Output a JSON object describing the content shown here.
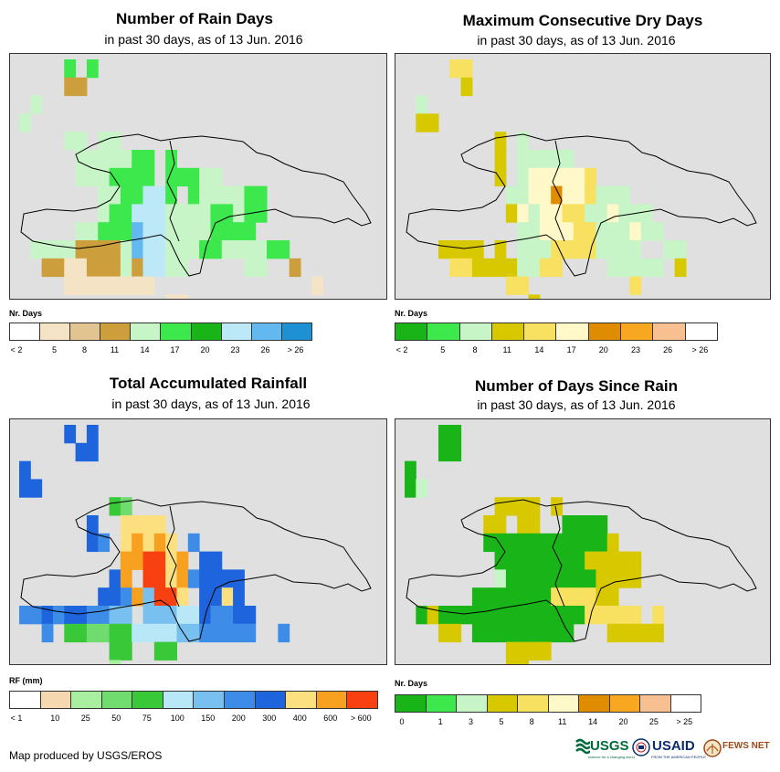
{
  "panels": [
    {
      "title": "Number of Rain Days",
      "subtitle": "in past 30 days, as of 13 Jun. 2016",
      "legend_title": "Nr. Days",
      "legend_labels": [
        "< 2",
        "5",
        "8",
        "11",
        "14",
        "17",
        "20",
        "23",
        "26",
        "> 26"
      ],
      "legend_colors": [
        "#ffffff",
        "#f5e3c5",
        "#e2c490",
        "#cc9f3c",
        "#c8f5c8",
        "#3ce84c",
        "#18b418",
        "#bce8f8",
        "#64b8f0",
        "#1e90d4"
      ]
    },
    {
      "title": "Maximum Consecutive Dry Days",
      "subtitle": "in past 30 days, as of 13 Jun. 2016",
      "legend_title": "Nr. Days",
      "legend_labels": [
        "< 2",
        "5",
        "8",
        "11",
        "14",
        "17",
        "20",
        "23",
        "26",
        "> 26"
      ],
      "legend_colors": [
        "#18b418",
        "#3ce84c",
        "#c8f5c8",
        "#d8c800",
        "#f8e060",
        "#fff8c8",
        "#e08c00",
        "#f8a820",
        "#f8c090",
        "#ffffff"
      ]
    },
    {
      "title": "Total Accumulated Rainfall",
      "subtitle": "in past 30 days, as of 13 Jun. 2016",
      "legend_title": "RF (mm)",
      "legend_labels": [
        "< 1",
        "10",
        "25",
        "50",
        "75",
        "100",
        "150",
        "200",
        "300",
        "400",
        "600",
        "> 600"
      ],
      "legend_colors": [
        "#ffffff",
        "#f5d8b0",
        "#a8f0a0",
        "#70dc70",
        "#38c838",
        "#b8e8f8",
        "#78c0f0",
        "#3c8ce8",
        "#1e64dc",
        "#fce080",
        "#f8a020",
        "#f84010"
      ]
    },
    {
      "title": "Number of Days Since Rain",
      "subtitle": "in past 30 days, as of 13 Jun. 2016",
      "legend_title": "Nr. Days",
      "legend_labels": [
        "0",
        "1",
        "3",
        "5",
        "8",
        "11",
        "14",
        "20",
        "25",
        "> 25"
      ],
      "legend_colors": [
        "#18b418",
        "#3ce84c",
        "#c8f5c8",
        "#d8c800",
        "#f8e060",
        "#fff8c8",
        "#e08c00",
        "#f8a820",
        "#f8c090",
        "#ffffff"
      ]
    }
  ],
  "credit": "Map produced by USGS/EROS",
  "logos": {
    "usgs": "USGS",
    "usgs_tagline": "science for a changing world",
    "usaid": "USAID",
    "usaid_tagline": "FROM THE AMERICAN PEOPLE",
    "fews": "FEWS NET"
  }
}
